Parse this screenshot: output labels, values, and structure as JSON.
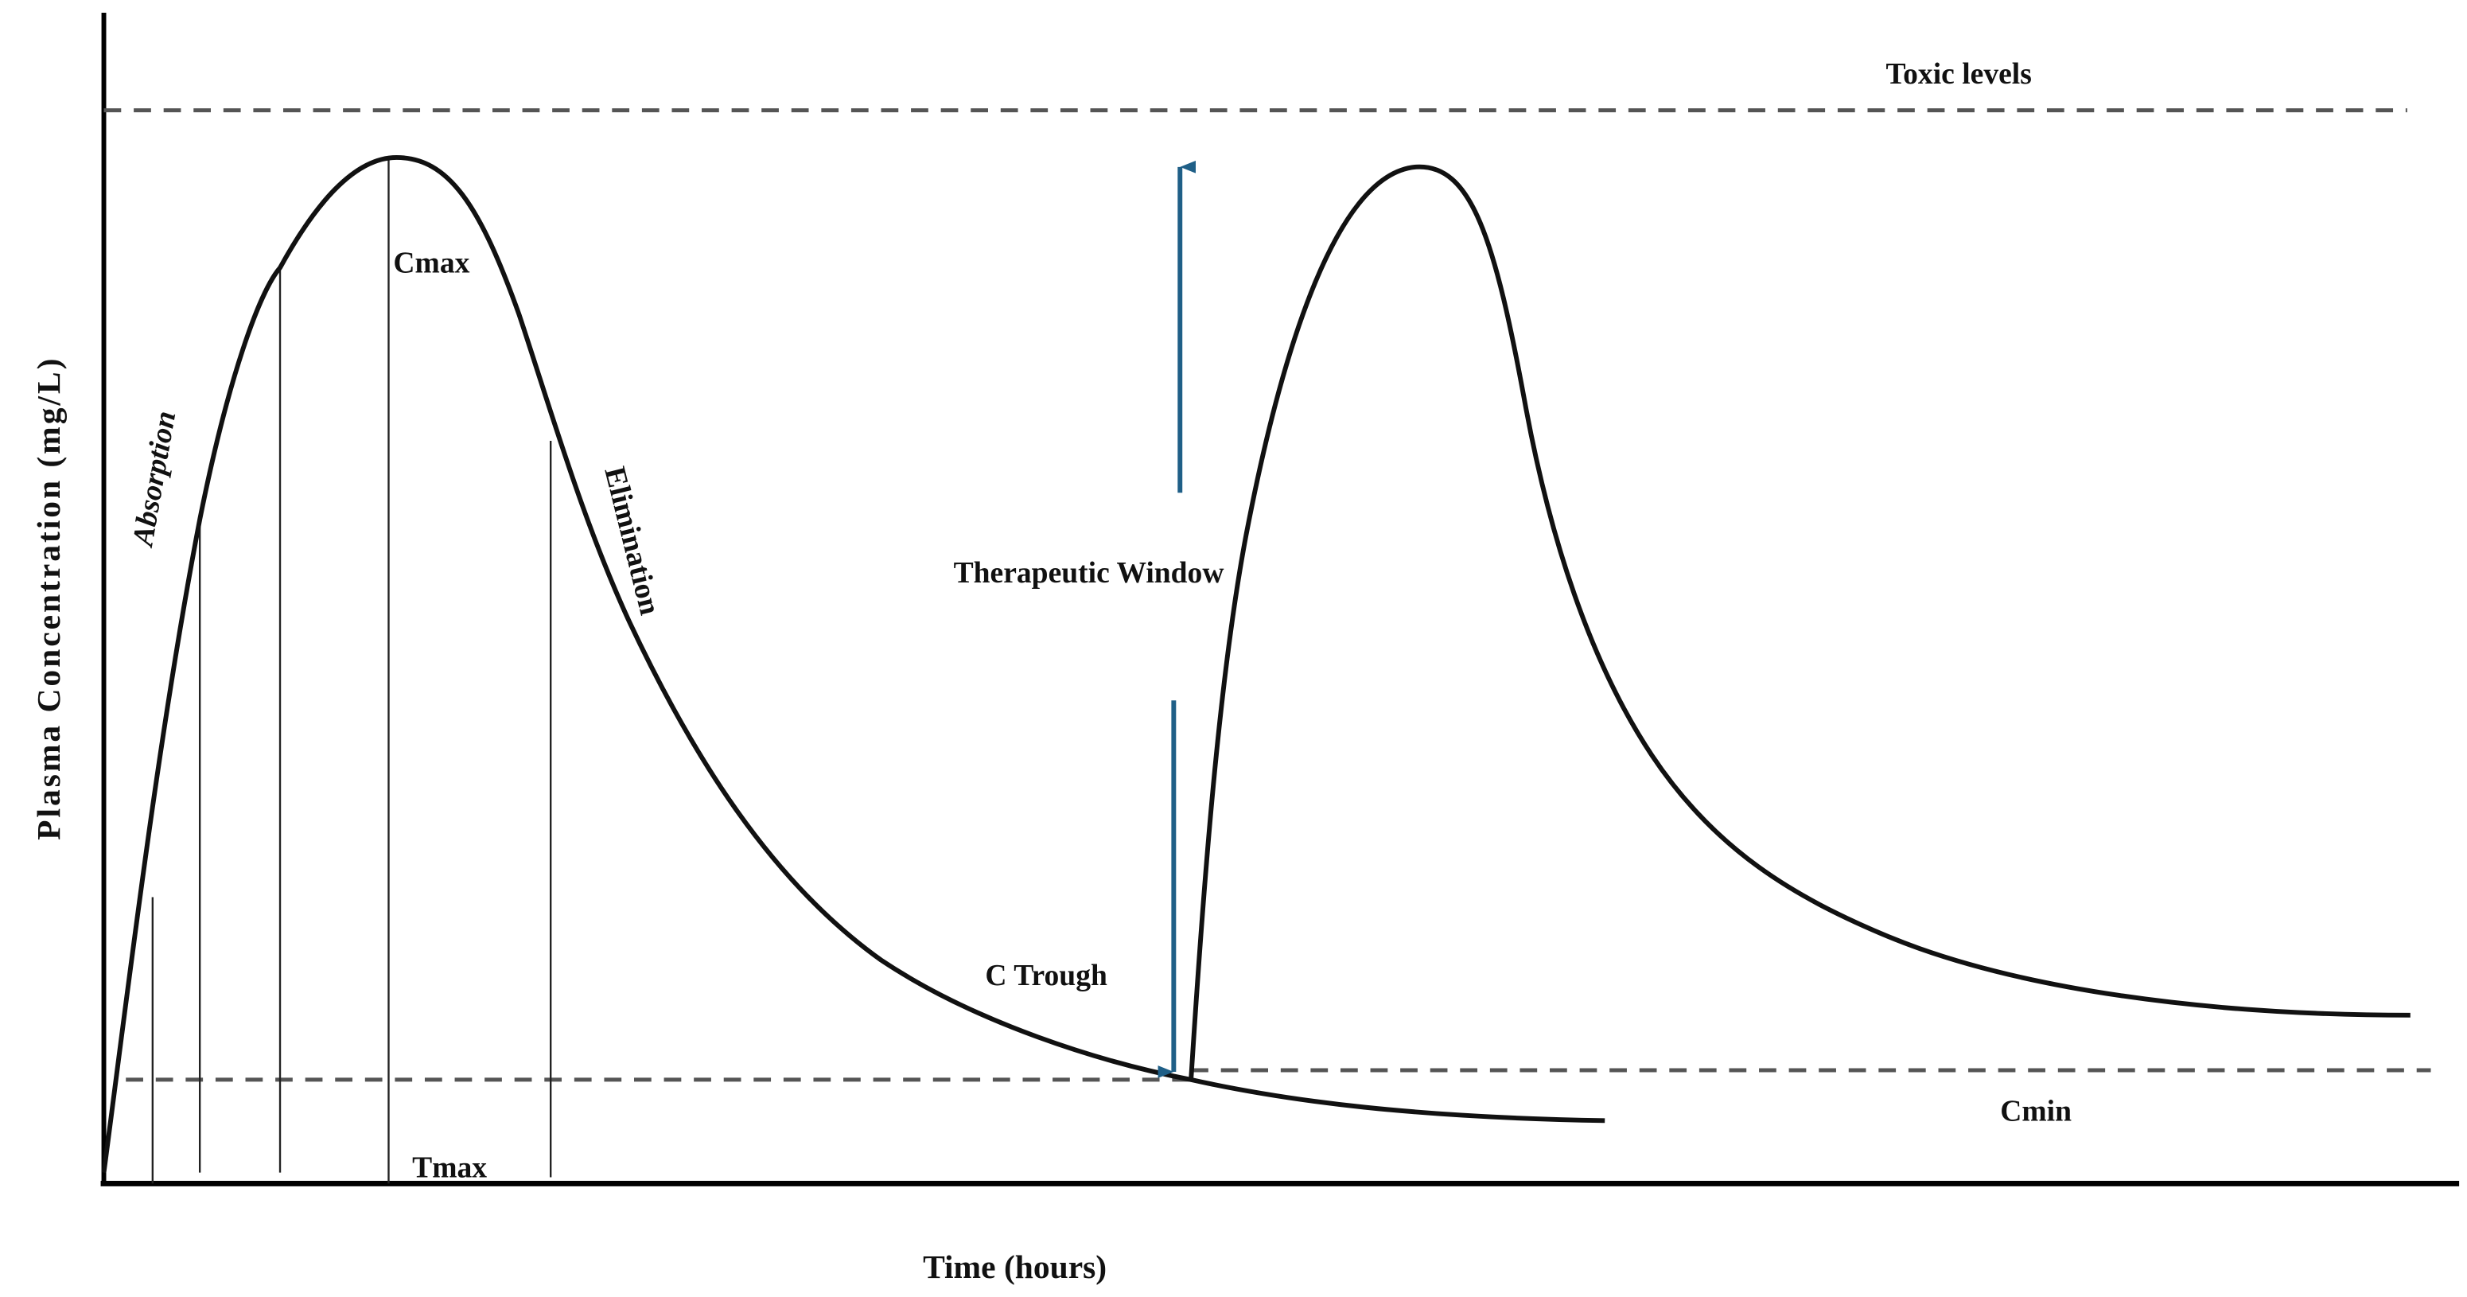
{
  "diagram": {
    "y_axis_label": "Plasma Concentration (mg/L)",
    "x_axis_label": "Time (hours)",
    "labels": {
      "toxic": "Toxic levels",
      "cmax": "Cmax",
      "tmax": "Tmax",
      "absorption": "Absorption",
      "elimination": "Elimination",
      "therapeutic_window": "Therapeutic Window",
      "c_trough": "C Trough",
      "cmin": "Cmin"
    },
    "colors": {
      "curve": "#111111",
      "arrow": "#1f5f87",
      "dashed": "#555555"
    }
  }
}
